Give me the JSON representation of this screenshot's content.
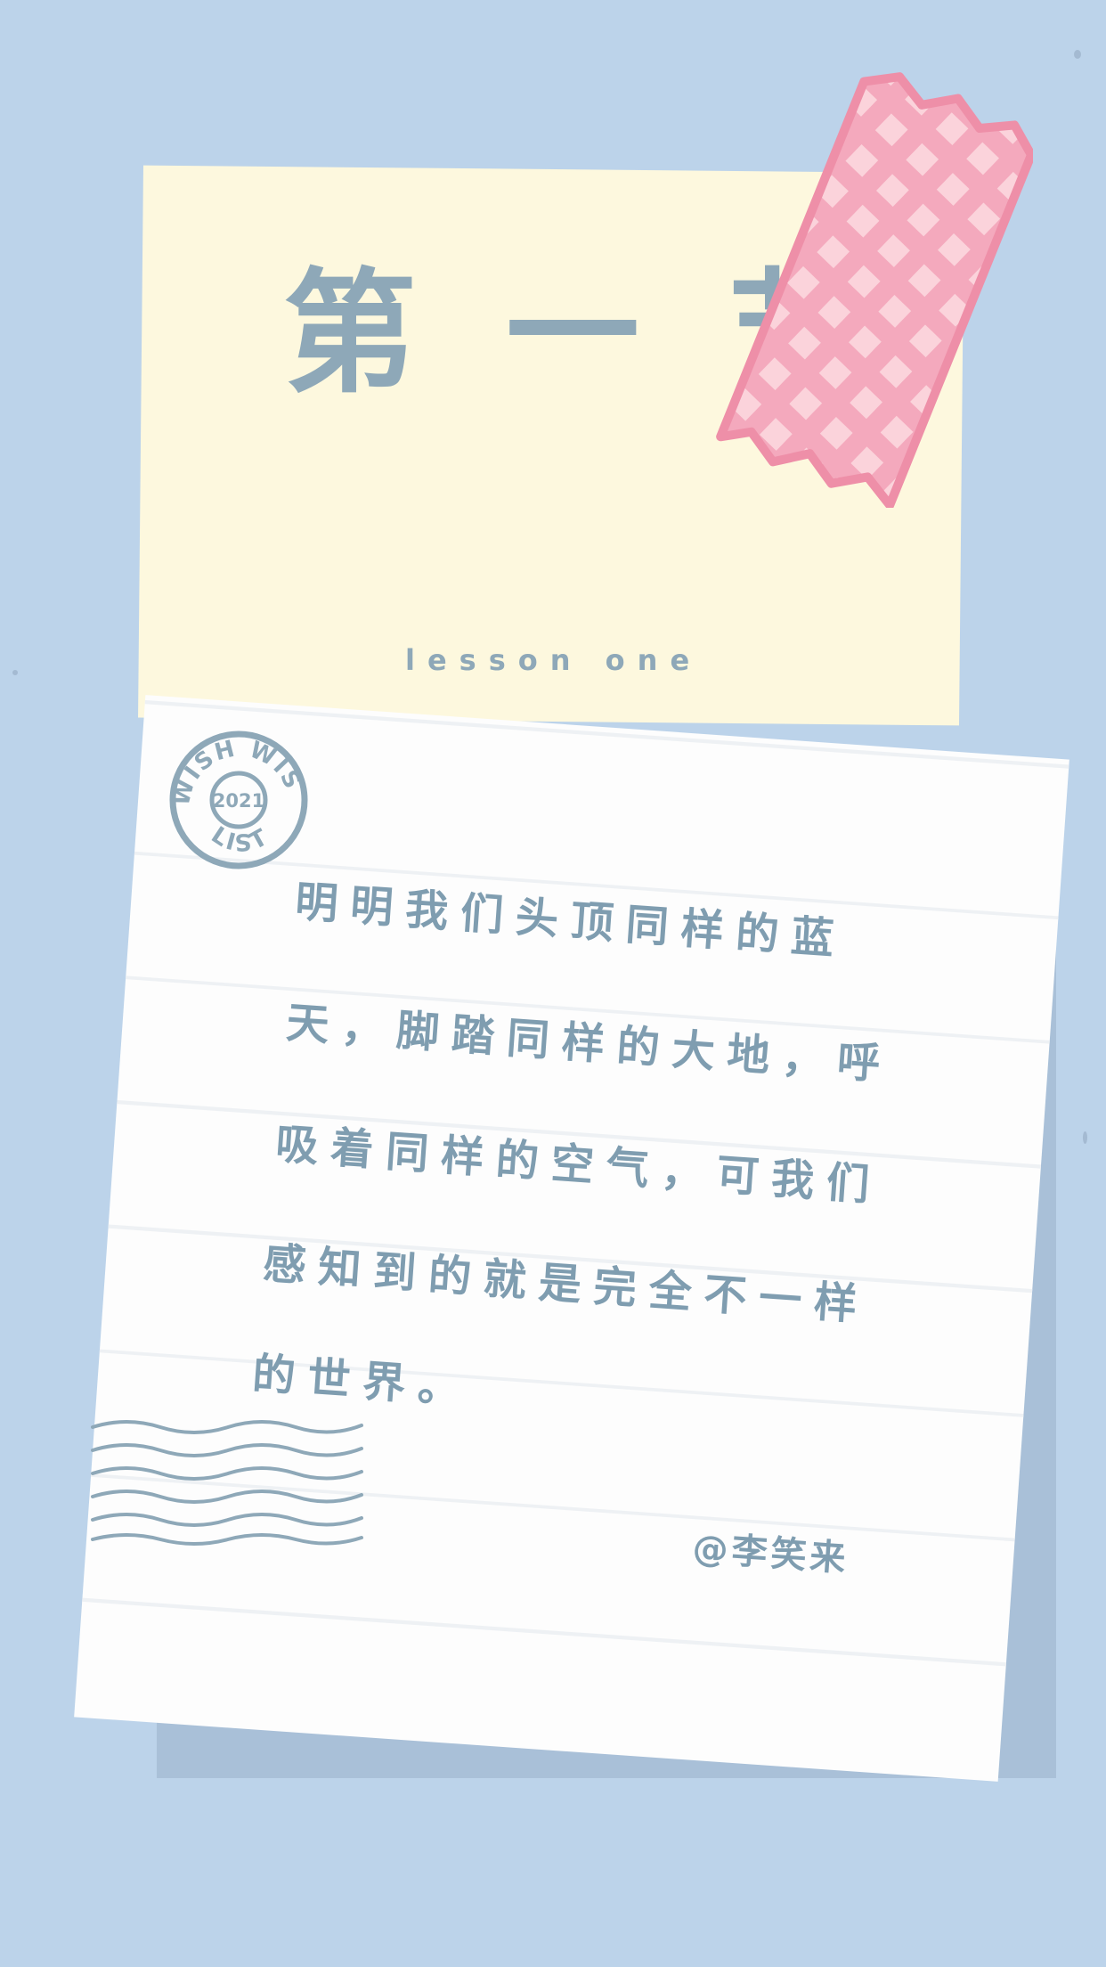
{
  "background": {
    "color": "#bcd3ea"
  },
  "card": {
    "title": "第一节",
    "subtitle": "lesson one",
    "color": "#fdf8de",
    "text_color": "#8ea8b8"
  },
  "tape": {
    "color": "#f4a9bd",
    "check_color": "#fbd3db"
  },
  "stamp": {
    "top_text": "WISH WISH",
    "bottom_text": "LIST",
    "year": "2021",
    "color": "#8ea8b8"
  },
  "note": {
    "lines": [
      "明明我们头顶同样的蓝",
      "天，脚踏同样的大地，呼",
      "吸着同样的空气，可我们",
      "感知到的就是完全不一样",
      "的世界。"
    ],
    "signature": "@李笑来",
    "text_color": "#7f9db0"
  }
}
